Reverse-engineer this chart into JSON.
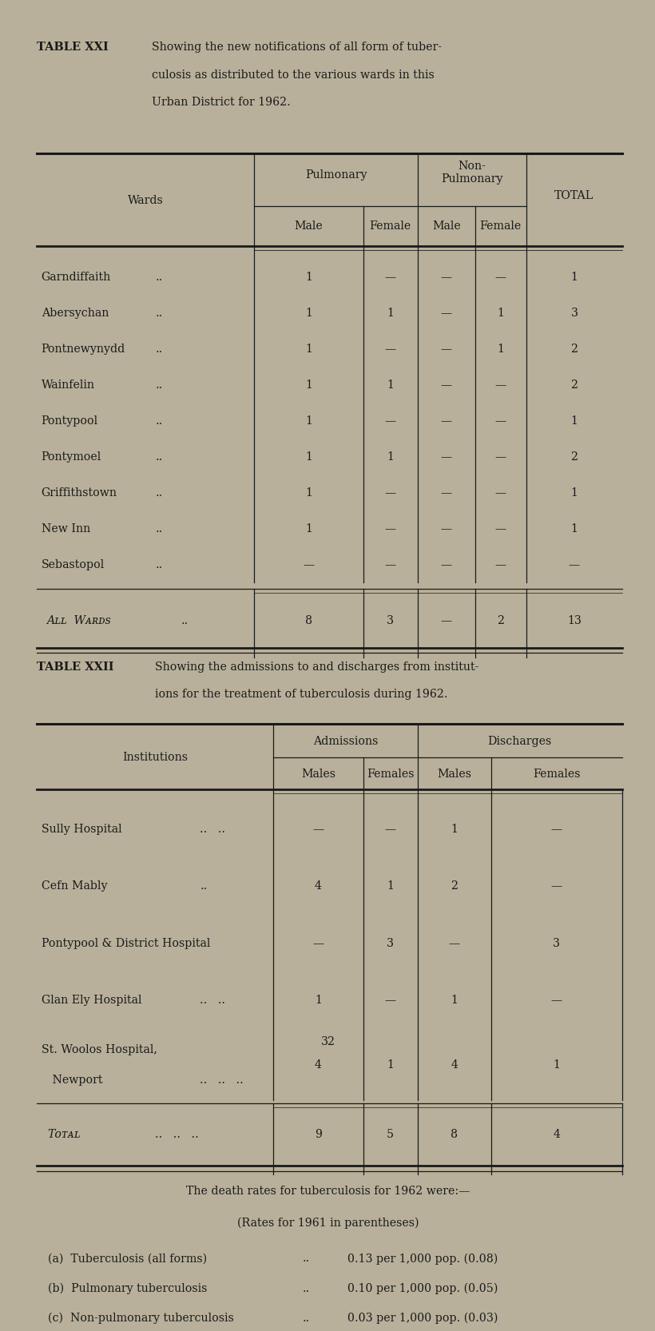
{
  "bg_color": "#b8b09a",
  "text_color": "#1a1a1a",
  "page_width": 8.01,
  "page_height": 13.23,
  "table1_title_bold": "TABLE XXI",
  "table1_title_text": "Showing the new notifications of all form of tuber-\nculosis as distributed to the various wards in this\nUrban District for 1962.",
  "table1_wards": [
    "Garndiffaith",
    "Abersychan",
    "Pontnewynydd",
    "Wainfelin",
    "Pontypool",
    "Pontymoel",
    "Griffithstown",
    "New Inn",
    "Sebastopol"
  ],
  "table1_data": [
    [
      "1",
      "—",
      "—",
      "—",
      "1"
    ],
    [
      "1",
      "1",
      "—",
      "1",
      "3"
    ],
    [
      "1",
      "—",
      "—",
      "1",
      "2"
    ],
    [
      "1",
      "1",
      "—",
      "—",
      "2"
    ],
    [
      "1",
      "—",
      "—",
      "—",
      "1"
    ],
    [
      "1",
      "1",
      "—",
      "—",
      "2"
    ],
    [
      "1",
      "—",
      "—",
      "—",
      "1"
    ],
    [
      "1",
      "—",
      "—",
      "—",
      "1"
    ],
    [
      "—",
      "—",
      "—",
      "—",
      "—"
    ]
  ],
  "table1_total_row": [
    "ALL WARDS",
    "8",
    "3",
    "—",
    "2",
    "13"
  ],
  "table2_title_bold": "TABLE XXII",
  "table2_title_text": "Showing the admissions to and discharges from institut-\nions for the treatment of tuberculosis during 1962.",
  "table2_data": [
    [
      "—",
      "—",
      "1",
      "—"
    ],
    [
      "4",
      "1",
      "2",
      "—"
    ],
    [
      "—",
      "3",
      "—",
      "3"
    ],
    [
      "1",
      "—",
      "1",
      "—"
    ],
    [
      "4",
      "1",
      "4",
      "1"
    ]
  ],
  "table2_total_row": [
    "TOTAL",
    "9",
    "5",
    "8",
    "4"
  ],
  "death_rates_header": "The death rates for tuberculosis for 1962 were:—",
  "death_rates_sub": "(Rates for 1961 in parentheses)",
  "death_rates_a": "(a)  Tuberculosis (all forms)",
  "death_rates_a_val": "0.13 per 1,000 pop. (0.08)",
  "death_rates_b": "(b)  Pulmonary tuberculosis",
  "death_rates_b_val": "0.10 per 1,000 pop. (0.05)",
  "death_rates_c": "(c)  Non-pulmonary tuberculosis",
  "death_rates_c_val": "0.03 per 1,000 pop. (0.03)",
  "page_number": "32"
}
